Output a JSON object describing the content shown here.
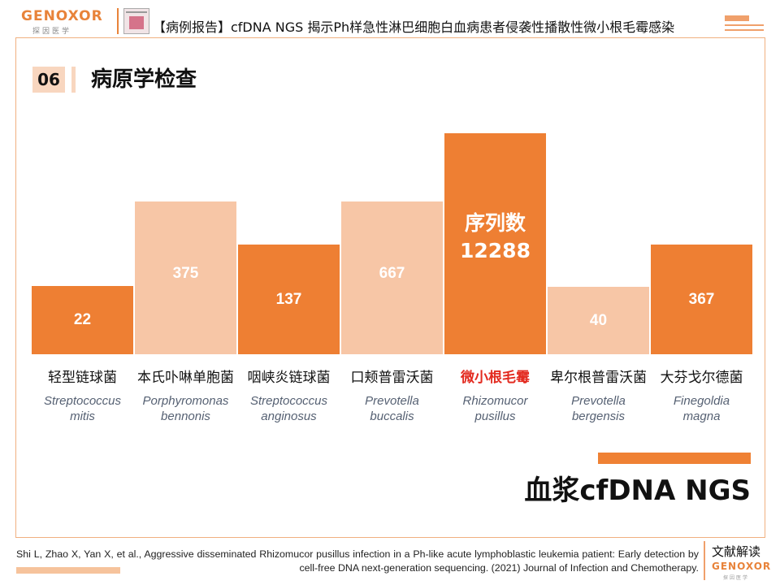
{
  "header": {
    "logo_text": "GENOXOR",
    "logo_sub": "探因医学",
    "title": "【病例报告】cfDNA NGS 揭示Ph样急性淋巴细胞白血病患者侵袭性播散性微小根毛霉感染"
  },
  "section": {
    "number": "06",
    "title": "病原学检查"
  },
  "chart_data": {
    "type": "bar",
    "categories": [
      "轻型链球菌",
      "本氏卟啉单胞菌",
      "咽峡炎链球菌",
      "口颊普雷沃菌",
      "微小根毛霉",
      "卑尔根普雷沃菌",
      "大芬戈尔德菌"
    ],
    "latin_names": [
      [
        "Streptococcus",
        "mitis"
      ],
      [
        "Porphyromonas",
        "bennonis"
      ],
      [
        "Streptococcus",
        "anginosus"
      ],
      [
        "Prevotella",
        "buccalis"
      ],
      [
        "Rhizomucor",
        "pusillus"
      ],
      [
        "Prevotella",
        "bergensis"
      ],
      [
        "Finegoldia",
        "magna"
      ]
    ],
    "values": [
      22,
      375,
      137,
      667,
      12288,
      40,
      367
    ],
    "value_labels": [
      "22",
      "375",
      "137",
      "667",
      "12288",
      "40",
      "367"
    ],
    "highlight_index": 4,
    "highlight_label": "序列数",
    "display_levels": [
      84,
      188,
      135,
      188,
      272,
      83,
      135
    ],
    "colors": [
      "#ee7f33",
      "#f7c6a6",
      "#ee7f33",
      "#f7c6a6",
      "#ee7f33",
      "#f7c6a6",
      "#ee7f33"
    ],
    "highlight_text_color": "#e32b20",
    "title": "",
    "xlabel": "",
    "ylabel": ""
  },
  "method": "血浆cfDNA NGS",
  "footer": {
    "citation": "Shi L, Zhao X, Yan X, et al., Aggressive disseminated Rhizomucor pusillus infection in a Ph-like acute lymphoblastic leukemia patient: Early detection by cell-free DNA next-generation sequencing. (2021) Journal of Infection and Chemotherapy.",
    "label": "文献解读",
    "logo_text": "GENOXOR",
    "logo_sub": "探因医学"
  }
}
